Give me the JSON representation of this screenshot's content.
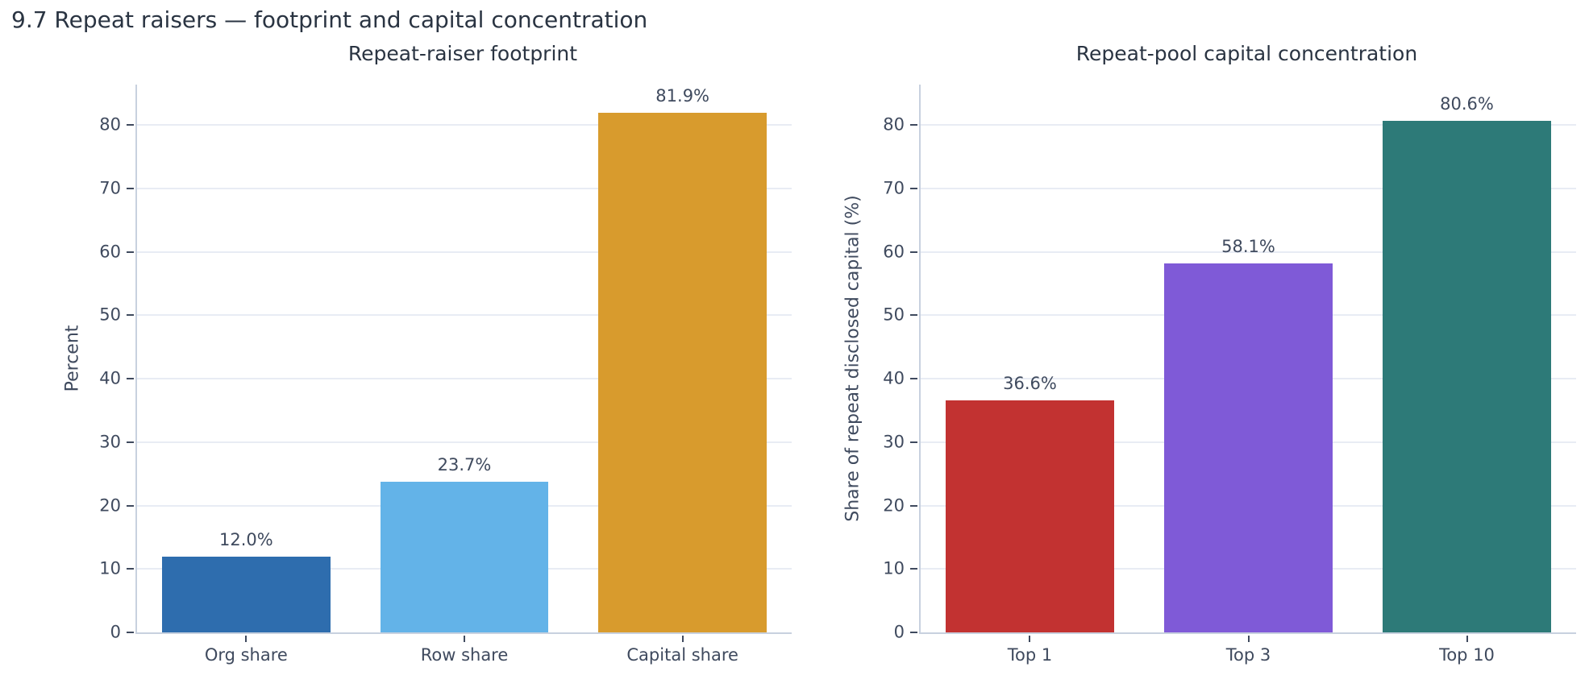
{
  "figure_title": "9.7 Repeat raisers — footprint and capital concentration",
  "colors": {
    "title_text": "#2a3442",
    "axis_text": "#3f4a5e",
    "grid_line": "#e8ecf4",
    "spine": "#c8d1df",
    "background": "#ffffff"
  },
  "chart_data": [
    {
      "type": "bar",
      "title": "Repeat-raiser footprint",
      "xlabel": "",
      "ylabel": "Percent",
      "categories": [
        "Org share",
        "Row share",
        "Capital share"
      ],
      "values": [
        12.0,
        23.7,
        81.9
      ],
      "value_labels": [
        "12.0%",
        "23.7%",
        "81.9%"
      ],
      "bar_colors": [
        "#2e6dae",
        "#63b3e8",
        "#d89b2d"
      ],
      "yticks": [
        0,
        10,
        20,
        30,
        40,
        50,
        60,
        70,
        80
      ],
      "ylim": [
        0,
        86.35
      ],
      "grid": "horizontal",
      "legend": "none"
    },
    {
      "type": "bar",
      "title": "Repeat-pool capital concentration",
      "xlabel": "",
      "ylabel": "Share of repeat disclosed capital (%)",
      "categories": [
        "Top 1",
        "Top 3",
        "Top 10"
      ],
      "values": [
        36.6,
        58.1,
        80.6
      ],
      "value_labels": [
        "36.6%",
        "58.1%",
        "80.6%"
      ],
      "bar_colors": [
        "#c23231",
        "#7f5ad7",
        "#2d7a78"
      ],
      "yticks": [
        0,
        10,
        20,
        30,
        40,
        50,
        60,
        70,
        80
      ],
      "ylim": [
        0,
        86.35
      ],
      "grid": "horizontal",
      "legend": "none"
    }
  ]
}
